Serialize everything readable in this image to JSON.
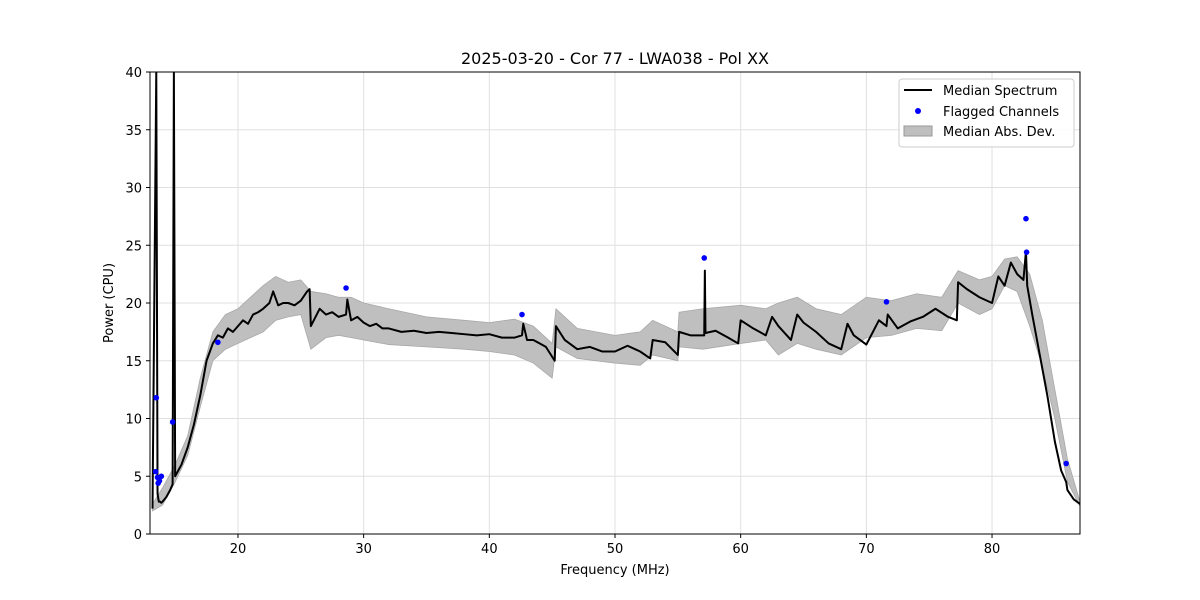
{
  "chart_data": {
    "type": "line",
    "title": "2025-03-20 - Cor 77 - LWA038 - Pol XX",
    "xlabel": "Frequency (MHz)",
    "ylabel": "Power (CPU)",
    "xlim": [
      13.0,
      87.0
    ],
    "ylim": [
      0,
      40
    ],
    "xticks": [
      20,
      30,
      40,
      50,
      60,
      70,
      80
    ],
    "yticks": [
      0,
      5,
      10,
      15,
      20,
      25,
      30,
      35,
      40
    ],
    "grid": true,
    "legend": {
      "placement": "top-right",
      "entries": [
        "Median Spectrum",
        "Flagged Channels",
        "Median Abs. Dev."
      ]
    },
    "colors": {
      "median": "#000000",
      "flagged": "#0000ff",
      "mad_fill": "#bfbfbf"
    },
    "series": [
      {
        "name": "Median Spectrum",
        "x": [
          13.2,
          13.5,
          13.6,
          13.7,
          13.8,
          13.9,
          14.0,
          14.3,
          14.6,
          14.8,
          14.9,
          15.0,
          15.5,
          16.0,
          16.5,
          17.0,
          17.5,
          18.0,
          18.4,
          18.8,
          19.2,
          19.6,
          20.0,
          20.4,
          20.8,
          21.2,
          21.6,
          22.0,
          22.5,
          22.8,
          23.2,
          23.6,
          24.0,
          24.5,
          25.0,
          25.5,
          25.7,
          25.8,
          26.5,
          27.0,
          27.5,
          28.0,
          28.6,
          28.7,
          29.0,
          29.5,
          30.0,
          30.5,
          31.0,
          31.5,
          32.0,
          33.0,
          34.0,
          35.0,
          36.0,
          37.0,
          38.0,
          39.0,
          40.0,
          41.0,
          42.0,
          42.6,
          42.7,
          43.0,
          43.5,
          44.0,
          44.5,
          45.2,
          45.3,
          46.0,
          47.0,
          48.0,
          49.0,
          50.0,
          51.0,
          52.0,
          52.8,
          53.0,
          54.0,
          55.0,
          55.1,
          56.0,
          57.1,
          57.15,
          57.2,
          58.0,
          59.0,
          59.8,
          60.0,
          61.0,
          62.0,
          62.5,
          63.0,
          64.0,
          64.5,
          65.0,
          66.0,
          67.0,
          68.0,
          68.5,
          69.0,
          70.0,
          71.0,
          71.6,
          71.7,
          72.5,
          73.5,
          74.5,
          75.5,
          76.5,
          77.2,
          77.3,
          78.0,
          79.0,
          80.0,
          80.5,
          81.0,
          81.5,
          82.0,
          82.5,
          82.7,
          82.8,
          83.2,
          83.8,
          84.4,
          85.0,
          85.5,
          85.9,
          86.0,
          86.5,
          87.0
        ],
        "y": [
          2.2,
          40.0,
          3.5,
          2.8,
          2.8,
          2.7,
          2.8,
          3.2,
          3.8,
          4.3,
          40.0,
          5.0,
          6.0,
          7.5,
          9.5,
          12.0,
          15.0,
          16.5,
          17.2,
          17.0,
          17.8,
          17.5,
          18.0,
          18.5,
          18.2,
          19.0,
          19.2,
          19.5,
          20.0,
          21.0,
          19.8,
          20.0,
          20.0,
          19.8,
          20.2,
          21.0,
          21.2,
          18.0,
          19.5,
          19.0,
          19.2,
          18.8,
          19.0,
          20.3,
          18.5,
          18.8,
          18.3,
          18.0,
          18.2,
          17.8,
          17.8,
          17.5,
          17.6,
          17.4,
          17.5,
          17.4,
          17.3,
          17.2,
          17.3,
          17.0,
          17.0,
          17.2,
          18.2,
          16.8,
          16.8,
          16.5,
          16.2,
          15.0,
          18.0,
          16.8,
          16.0,
          16.2,
          15.8,
          15.8,
          16.3,
          15.8,
          15.2,
          16.8,
          16.6,
          15.5,
          17.5,
          17.2,
          17.2,
          22.8,
          17.4,
          17.6,
          17.0,
          16.5,
          18.5,
          17.8,
          17.2,
          18.8,
          18.0,
          16.8,
          19.0,
          18.3,
          17.5,
          16.5,
          16.0,
          18.2,
          17.2,
          16.4,
          18.5,
          18.0,
          19.0,
          17.8,
          18.4,
          18.8,
          19.5,
          18.8,
          18.5,
          21.8,
          21.2,
          20.5,
          20.0,
          22.3,
          21.5,
          23.5,
          22.5,
          22.0,
          24.5,
          21.5,
          19.0,
          15.5,
          12.0,
          8.0,
          5.5,
          4.5,
          3.8,
          3.0,
          2.6
        ]
      },
      {
        "name": "Median Abs. Dev.",
        "x": [
          13.2,
          14.0,
          15.0,
          16.0,
          17.0,
          18.0,
          19.0,
          20.0,
          21.0,
          22.0,
          23.0,
          24.0,
          25.0,
          25.8,
          27.0,
          28.0,
          29.0,
          30.0,
          32.0,
          35.0,
          38.0,
          40.0,
          42.0,
          43.5,
          45.0,
          45.3,
          47.0,
          50.0,
          52.0,
          53.0,
          55.0,
          55.1,
          57.0,
          60.0,
          62.0,
          63.0,
          64.5,
          66.0,
          68.0,
          70.0,
          72.0,
          74.0,
          76.0,
          77.3,
          79.0,
          80.0,
          81.0,
          82.0,
          83.0,
          84.0,
          85.0,
          86.0,
          87.0
        ],
        "lower": [
          2.0,
          2.5,
          4.5,
          6.8,
          11.0,
          15.0,
          16.0,
          16.5,
          17.0,
          17.5,
          18.5,
          18.8,
          19.0,
          16.0,
          17.0,
          17.2,
          17.0,
          16.8,
          16.4,
          16.2,
          16.0,
          15.8,
          15.5,
          14.8,
          13.5,
          16.2,
          15.2,
          14.8,
          14.6,
          15.5,
          15.0,
          16.2,
          16.0,
          16.5,
          16.8,
          15.5,
          16.5,
          16.0,
          15.5,
          17.0,
          17.2,
          17.8,
          17.6,
          20.0,
          19.0,
          19.5,
          21.5,
          21.0,
          18.0,
          14.5,
          10.0,
          4.5,
          2.4
        ],
        "upper": [
          2.6,
          4.0,
          6.0,
          8.5,
          13.5,
          17.5,
          19.0,
          19.5,
          20.5,
          21.5,
          22.3,
          21.8,
          22.0,
          21.0,
          20.8,
          20.5,
          20.5,
          20.0,
          19.5,
          18.8,
          18.5,
          18.3,
          18.6,
          18.0,
          16.5,
          19.5,
          17.8,
          17.2,
          17.5,
          18.5,
          17.5,
          19.2,
          19.5,
          19.8,
          19.5,
          20.0,
          20.5,
          19.5,
          19.0,
          20.5,
          20.2,
          20.8,
          20.5,
          22.8,
          22.0,
          22.3,
          23.8,
          24.0,
          22.5,
          18.5,
          12.5,
          6.5,
          2.8
        ]
      },
      {
        "name": "Flagged Channels",
        "points": [
          [
            13.5,
            11.8
          ],
          [
            13.45,
            5.4
          ],
          [
            13.6,
            4.9
          ],
          [
            13.75,
            4.6
          ],
          [
            13.9,
            5.0
          ],
          [
            13.65,
            4.4
          ],
          [
            14.8,
            9.7
          ],
          [
            18.4,
            16.6
          ],
          [
            28.6,
            21.3
          ],
          [
            42.6,
            19.0
          ],
          [
            57.1,
            23.9
          ],
          [
            71.6,
            20.1
          ],
          [
            82.7,
            27.3
          ],
          [
            82.75,
            24.4
          ],
          [
            85.9,
            6.1
          ]
        ]
      }
    ]
  }
}
